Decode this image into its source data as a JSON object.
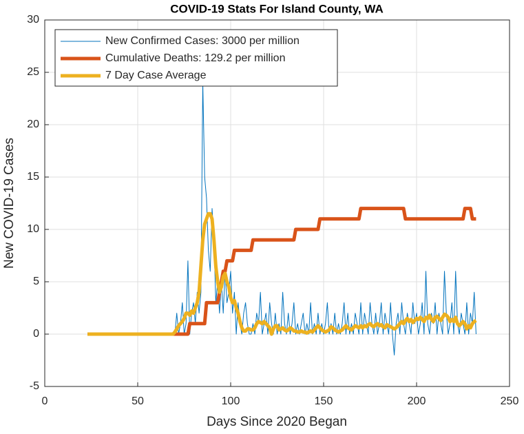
{
  "chart_data": {
    "type": "line",
    "title": "COVID-19 Stats For Island County, WA",
    "x_label": "Days Since 2020 Began",
    "y_label": "New COVID-19 Cases",
    "x": [
      23,
      24,
      25,
      26,
      27,
      28,
      29,
      30,
      31,
      32,
      33,
      34,
      35,
      36,
      37,
      38,
      39,
      40,
      41,
      42,
      43,
      44,
      45,
      46,
      47,
      48,
      49,
      50,
      51,
      52,
      53,
      54,
      55,
      56,
      57,
      58,
      59,
      60,
      61,
      62,
      63,
      64,
      65,
      66,
      67,
      68,
      69,
      70,
      71,
      72,
      73,
      74,
      75,
      76,
      77,
      78,
      79,
      80,
      81,
      82,
      83,
      84,
      85,
      86,
      87,
      88,
      89,
      90,
      91,
      92,
      93,
      94,
      95,
      96,
      97,
      98,
      99,
      100,
      101,
      102,
      103,
      104,
      105,
      106,
      107,
      108,
      109,
      110,
      111,
      112,
      113,
      114,
      115,
      116,
      117,
      118,
      119,
      120,
      121,
      122,
      123,
      124,
      125,
      126,
      127,
      128,
      129,
      130,
      131,
      132,
      133,
      134,
      135,
      136,
      137,
      138,
      139,
      140,
      141,
      142,
      143,
      144,
      145,
      146,
      147,
      148,
      149,
      150,
      151,
      152,
      153,
      154,
      155,
      156,
      157,
      158,
      159,
      160,
      161,
      162,
      163,
      164,
      165,
      166,
      167,
      168,
      169,
      170,
      171,
      172,
      173,
      174,
      175,
      176,
      177,
      178,
      179,
      180,
      181,
      182,
      183,
      184,
      185,
      186,
      187,
      188,
      189,
      190,
      191,
      192,
      193,
      194,
      195,
      196,
      197,
      198,
      199,
      200,
      201,
      202,
      203,
      204,
      205,
      206,
      207,
      208,
      209,
      210,
      211,
      212,
      213,
      214,
      215,
      216,
      217,
      218,
      219,
      220,
      221,
      222,
      223,
      224,
      225,
      226,
      227,
      228,
      229,
      230,
      231,
      232
    ],
    "series": [
      {
        "name": "New Confirmed Cases: 3000 per million",
        "color": "#0072bd",
        "width": 1,
        "values": [
          0,
          0,
          0,
          0,
          0,
          0,
          0,
          0,
          0,
          0,
          0,
          0,
          0,
          0,
          0,
          0,
          0,
          0,
          0,
          0,
          0,
          0,
          0,
          0,
          0,
          0,
          0,
          0,
          0,
          0,
          0,
          0,
          0,
          0,
          0,
          0,
          0,
          0,
          0,
          0,
          0,
          0,
          0,
          0,
          0,
          0,
          0,
          0,
          2,
          0,
          1,
          3,
          0,
          1,
          7,
          0,
          2,
          3,
          1,
          4,
          2,
          4,
          24,
          15,
          13,
          8,
          6,
          12,
          9,
          3,
          5,
          2,
          5,
          2,
          6,
          3,
          4,
          6,
          2,
          4,
          0,
          3,
          1,
          0,
          2,
          3,
          1,
          0,
          0,
          1,
          0,
          2,
          1,
          4,
          0,
          1,
          2,
          0,
          3,
          1,
          0,
          2,
          0,
          1,
          0,
          4,
          1,
          0,
          2,
          0,
          1,
          3,
          0,
          1,
          0,
          1,
          2,
          0,
          1,
          0,
          3,
          0,
          1,
          0,
          2,
          0,
          1,
          0,
          1,
          3,
          0,
          1,
          0,
          2,
          0,
          1,
          0,
          1,
          3,
          0,
          2,
          0,
          1,
          0,
          2,
          1,
          0,
          3,
          0,
          2,
          1,
          0,
          3,
          1,
          0,
          2,
          0,
          1,
          3,
          0,
          2,
          1,
          0,
          3,
          0,
          -2,
          1,
          2,
          0,
          3,
          1,
          0,
          2,
          1,
          0,
          3,
          1,
          2,
          0,
          1,
          3,
          0,
          6,
          1,
          0,
          2,
          1,
          3,
          0,
          2,
          1,
          0,
          6,
          2,
          0,
          1,
          3,
          0,
          6,
          1,
          0,
          2,
          1,
          0,
          3,
          0,
          2,
          1,
          4,
          0
        ]
      },
      {
        "name": "Cumulative Deaths: 129.2 per million",
        "color": "#d95319",
        "width": 5,
        "values": [
          0,
          0,
          0,
          0,
          0,
          0,
          0,
          0,
          0,
          0,
          0,
          0,
          0,
          0,
          0,
          0,
          0,
          0,
          0,
          0,
          0,
          0,
          0,
          0,
          0,
          0,
          0,
          0,
          0,
          0,
          0,
          0,
          0,
          0,
          0,
          0,
          0,
          0,
          0,
          0,
          0,
          0,
          0,
          0,
          0,
          0,
          0,
          0,
          0,
          0,
          0,
          0,
          0,
          0,
          0,
          1,
          1,
          1,
          1,
          1,
          1,
          1,
          1,
          1,
          3,
          3,
          3,
          3,
          3,
          3,
          3,
          4,
          5,
          6,
          6,
          7,
          7,
          7,
          7,
          8,
          8,
          8,
          8,
          8,
          8,
          8,
          8,
          8,
          8,
          9,
          9,
          9,
          9,
          9,
          9,
          9,
          9,
          9,
          9,
          9,
          9,
          9,
          9,
          9,
          9,
          9,
          9,
          9,
          9,
          9,
          9,
          9,
          10,
          10,
          10,
          10,
          10,
          10,
          10,
          10,
          10,
          10,
          10,
          10,
          10,
          11,
          11,
          11,
          11,
          11,
          11,
          11,
          11,
          11,
          11,
          11,
          11,
          11,
          11,
          11,
          11,
          11,
          11,
          11,
          11,
          11,
          11,
          12,
          12,
          12,
          12,
          12,
          12,
          12,
          12,
          12,
          12,
          12,
          12,
          12,
          12,
          12,
          12,
          12,
          12,
          12,
          12,
          12,
          12,
          12,
          12,
          11,
          11,
          11,
          11,
          11,
          11,
          11,
          11,
          11,
          11,
          11,
          11,
          11,
          11,
          11,
          11,
          11,
          11,
          11,
          11,
          11,
          11,
          11,
          11,
          11,
          11,
          11,
          11,
          11,
          11,
          11,
          11,
          12,
          12,
          12,
          12,
          11,
          11,
          11
        ]
      },
      {
        "name": "7 Day Case Average",
        "color": "#edb120",
        "width": 5,
        "values": [
          0,
          0,
          0,
          0,
          0,
          0,
          0,
          0,
          0,
          0,
          0,
          0,
          0,
          0,
          0,
          0,
          0,
          0,
          0,
          0,
          0,
          0,
          0,
          0,
          0,
          0,
          0,
          0,
          0,
          0,
          0,
          0,
          0,
          0,
          0,
          0,
          0,
          0,
          0,
          0,
          0,
          0,
          0,
          0,
          0,
          0,
          0,
          0.2,
          0.5,
          0.8,
          1.0,
          1.2,
          1.5,
          2.0,
          2.0,
          1.8,
          2.2,
          2.0,
          2.5,
          3.0,
          4.0,
          6.5,
          9.0,
          10.5,
          11.0,
          11.5,
          11.5,
          11.0,
          9.0,
          6.5,
          5.0,
          4.0,
          4.5,
          5.5,
          5.8,
          5.0,
          4.5,
          3.5,
          3.0,
          3.2,
          2.5,
          2.0,
          1.2,
          0.6,
          0.3,
          0.3,
          0.5,
          0.5,
          0.4,
          0.4,
          0.6,
          1.0,
          1.2,
          1.1,
          1.0,
          1.2,
          1.0,
          0.8,
          0.6,
          0.0,
          0.5,
          0.8,
          0.8,
          0.4,
          0.5,
          0.6,
          0.4,
          0.3,
          0.4,
          0.6,
          0.5,
          0.3,
          0.3,
          0.2,
          0.2,
          0.3,
          0.2,
          0.2,
          0.1,
          0.2,
          0.3,
          0.2,
          0.4,
          0.6,
          0.8,
          0.6,
          0.4,
          0.3,
          0.2,
          0.3,
          0.4,
          0.7,
          0.6,
          0.4,
          0.3,
          0.2,
          0.3,
          0.4,
          0.6,
          0.8,
          0.6,
          0.5,
          0.4,
          0.6,
          0.8,
          0.7,
          0.6,
          0.8,
          0.6,
          0.8,
          0.7,
          0.9,
          1.0,
          0.8,
          0.7,
          0.9,
          1.0,
          0.8,
          0.9,
          0.7,
          0.6,
          0.9,
          0.8,
          0.7,
          0.6,
          0.5,
          0.6,
          0.8,
          1.0,
          1.2,
          1.0,
          1.3,
          1.5,
          1.2,
          1.4,
          1.1,
          1.3,
          1.5,
          1.4,
          1.6,
          1.4,
          1.2,
          1.6,
          1.5,
          1.8,
          1.4,
          1.2,
          1.6,
          1.7,
          1.5,
          1.3,
          1.6,
          1.9,
          1.8,
          1.6,
          1.2,
          1.4,
          1.2,
          1.6,
          1.0,
          0.8,
          1.0,
          1.2,
          1.0,
          0.5,
          0.8,
          0.6,
          1.0,
          1.2,
          1.3
        ]
      }
    ],
    "xlim": [
      0,
      250
    ],
    "xticks": [
      0,
      50,
      100,
      150,
      200,
      250
    ],
    "ylim": [
      -5,
      30
    ],
    "yticks": [
      -5,
      0,
      5,
      10,
      15,
      20,
      25,
      30
    ],
    "grid": true,
    "legend": "upper-left"
  }
}
